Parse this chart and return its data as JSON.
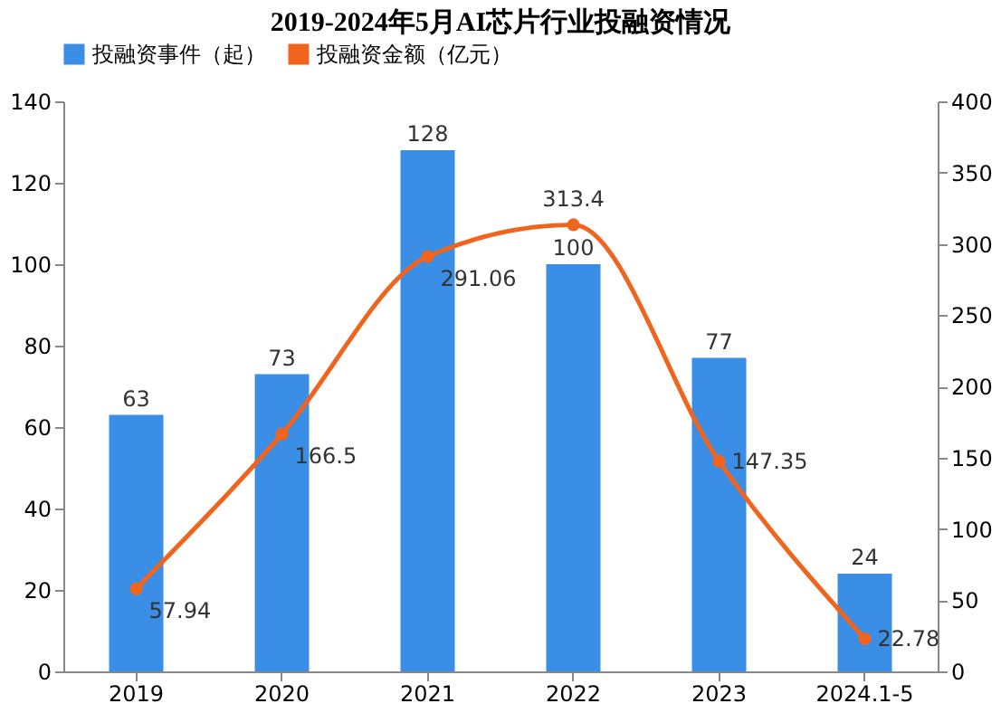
{
  "chart_data": {
    "type": "bar",
    "title": "2019-2024年5月AI芯片行业投融资情况",
    "categories": [
      "2019",
      "2020",
      "2021",
      "2022",
      "2023",
      "2024.1-5"
    ],
    "series": [
      {
        "name": "投融资事件（起）",
        "color": "#3a8ee6",
        "values": [
          63,
          73,
          128,
          100,
          77,
          24
        ]
      },
      {
        "name": "投融资金额（亿元）",
        "type": "line",
        "axis": "y2",
        "color": "#f0641e",
        "values": [
          57.94,
          166.5,
          291.06,
          313.4,
          147.35,
          22.78
        ]
      }
    ],
    "ylim": [
      0,
      140
    ],
    "yticks": [
      0,
      20,
      40,
      60,
      80,
      100,
      120,
      140
    ],
    "y2lim": [
      0,
      400
    ],
    "y2ticks": [
      0,
      50,
      100,
      150,
      200,
      250,
      300,
      350,
      400
    ],
    "data_labels": true,
    "legend": "top",
    "grid": false,
    "marker": "circle",
    "line_style": "solid"
  }
}
